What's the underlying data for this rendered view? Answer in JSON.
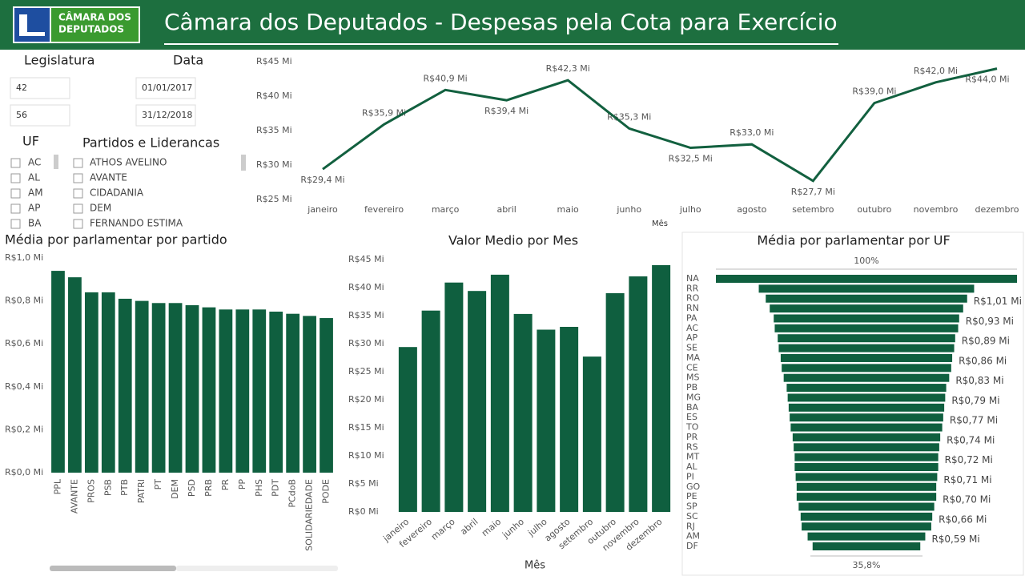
{
  "header": {
    "logo": [
      "CÂMARA DOS",
      "DEPUTADOS"
    ],
    "title": "Câmara dos Deputados - Despesas pela Cota para Exercício"
  },
  "filters": {
    "legislatura": {
      "label": "Legislatura",
      "values": [
        "42",
        "56"
      ]
    },
    "data": {
      "label": "Data",
      "values": [
        "01/01/2017",
        "31/12/2018"
      ]
    },
    "uf": {
      "label": "UF",
      "items": [
        "AC",
        "AL",
        "AM",
        "AP",
        "BA"
      ]
    },
    "partidos": {
      "label": "Partidos e Liderancas",
      "items": [
        "ATHOS AVELINO",
        "AVANTE",
        "CIDADANIA",
        "DEM",
        "FERNANDO ESTIMA"
      ]
    }
  },
  "chart_data": [
    {
      "type": "line",
      "categories": [
        "janeiro",
        "fevereiro",
        "março",
        "abril",
        "maio",
        "junho",
        "julho",
        "agosto",
        "setembro",
        "outubro",
        "novembro",
        "dezembro"
      ],
      "values": [
        29.4,
        35.9,
        40.9,
        39.4,
        42.3,
        35.3,
        32.5,
        33.0,
        27.7,
        39.0,
        42.0,
        44.0
      ],
      "value_labels": [
        "R$29,4 Mi",
        "R$35,9 Mi",
        "R$40,9 Mi",
        "R$39,4 Mi",
        "R$42,3 Mi",
        "R$35,3 Mi",
        "R$32,5 Mi",
        "R$33,0 Mi",
        "R$27,7 Mi",
        "R$39,0 Mi",
        "R$42,0 Mi",
        "R$44,0 Mi"
      ],
      "color": "#12603f",
      "ylim": [
        25,
        45
      ],
      "yticks": [
        {
          "value": 25,
          "label": "R$25 Mi"
        },
        {
          "value": 30,
          "label": "R$30 Mi"
        },
        {
          "value": 35,
          "label": "R$35 Mi"
        },
        {
          "value": 40,
          "label": "R$40 Mi"
        },
        {
          "value": 45,
          "label": "R$45 Mi"
        }
      ],
      "x_label": "Mês"
    },
    {
      "type": "bar",
      "title": "Média por parlamentar por partido",
      "categories": [
        "PPL",
        "AVANTE",
        "PROS",
        "PSB",
        "PTB",
        "PATRI",
        "PT",
        "DEM",
        "PSD",
        "PRB",
        "PR",
        "PP",
        "PHS",
        "PDT",
        "PCdoB",
        "SOLIDARIEDADE",
        "PODE"
      ],
      "values": [
        0.94,
        0.91,
        0.84,
        0.84,
        0.81,
        0.8,
        0.79,
        0.79,
        0.78,
        0.77,
        0.76,
        0.76,
        0.76,
        0.75,
        0.74,
        0.73,
        0.72
      ],
      "color": "#0f5f3f",
      "ylim": [
        0,
        1.0
      ],
      "yticks": [
        {
          "value": 0,
          "label": "R$0,0 Mi"
        },
        {
          "value": 0.2,
          "label": "R$0,2 Mi"
        },
        {
          "value": 0.4,
          "label": "R$0,4 Mi"
        },
        {
          "value": 0.6,
          "label": "R$0,6 Mi"
        },
        {
          "value": 0.8,
          "label": "R$0,8 Mi"
        },
        {
          "value": 1.0,
          "label": "R$1,0 Mi"
        }
      ]
    },
    {
      "type": "bar",
      "title": "Valor Medio por Mes",
      "categories": [
        "janeiro",
        "fevereiro",
        "março",
        "abril",
        "maio",
        "junho",
        "julho",
        "agosto",
        "setembro",
        "outubro",
        "novembro",
        "dezembro"
      ],
      "values": [
        29.4,
        35.9,
        40.9,
        39.4,
        42.3,
        35.3,
        32.5,
        33.0,
        27.7,
        39.0,
        42.0,
        44.0
      ],
      "color": "#0f5f3f",
      "ylim": [
        0,
        45
      ],
      "yticks": [
        {
          "value": 0,
          "label": "R$0 Mi"
        },
        {
          "value": 5,
          "label": "R$5 Mi"
        },
        {
          "value": 10,
          "label": "R$10 Mi"
        },
        {
          "value": 15,
          "label": "R$15 Mi"
        },
        {
          "value": 20,
          "label": "R$20 Mi"
        },
        {
          "value": 25,
          "label": "R$25 Mi"
        },
        {
          "value": 30,
          "label": "R$30 Mi"
        },
        {
          "value": 35,
          "label": "R$35 Mi"
        },
        {
          "value": 40,
          "label": "R$40 Mi"
        },
        {
          "value": 45,
          "label": "R$45 Mi"
        }
      ],
      "x_label": "Mês"
    },
    {
      "type": "funnel",
      "title": "Média por parlamentar por UF",
      "categories": [
        "NA",
        "RR",
        "RO",
        "RN",
        "PA",
        "AC",
        "AP",
        "SE",
        "MA",
        "CE",
        "MS",
        "PB",
        "MG",
        "BA",
        "ES",
        "TO",
        "PR",
        "RS",
        "MT",
        "AL",
        "PI",
        "GO",
        "PE",
        "SP",
        "SC",
        "RJ",
        "AM",
        "DF"
      ],
      "values": [
        1.51,
        1.08,
        1.01,
        0.97,
        0.93,
        0.92,
        0.89,
        0.88,
        0.86,
        0.85,
        0.83,
        0.8,
        0.79,
        0.78,
        0.77,
        0.76,
        0.74,
        0.73,
        0.72,
        0.72,
        0.71,
        0.7,
        0.7,
        0.68,
        0.66,
        0.65,
        0.59,
        0.54
      ],
      "value_labels": [
        null,
        null,
        "R$1,01 Mi",
        null,
        "R$0,93 Mi",
        null,
        "R$0,89 Mi",
        null,
        "R$0,86 Mi",
        null,
        "R$0,83 Mi",
        null,
        "R$0,79 Mi",
        null,
        "R$0,77 Mi",
        null,
        "R$0,74 Mi",
        null,
        "R$0,72 Mi",
        null,
        "R$0,71 Mi",
        null,
        "R$0,70 Mi",
        null,
        "R$0,66 Mi",
        null,
        "R$0,59 Mi",
        null
      ],
      "color": "#0f5f3f",
      "top_label": "100%",
      "bottom_label": "35,8%"
    }
  ]
}
